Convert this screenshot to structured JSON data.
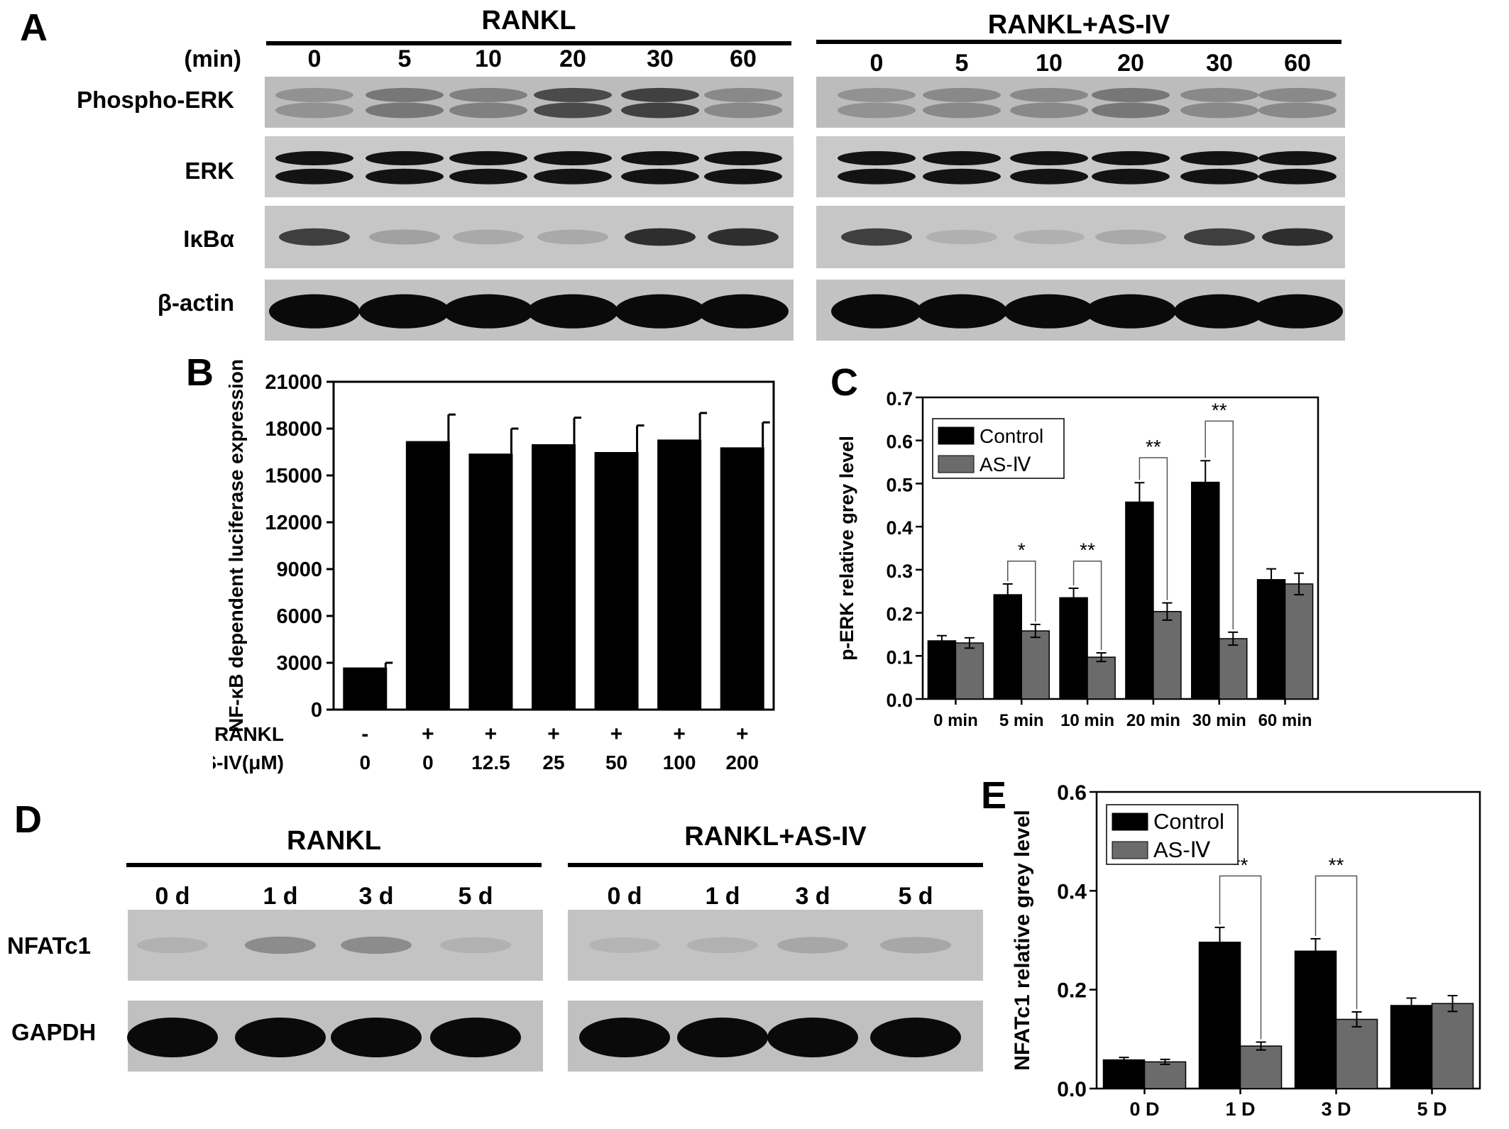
{
  "panels": {
    "A": {
      "letter": "A",
      "min_label": "(min)",
      "group_left": "RANKL",
      "group_right": "RANKL+AS-IV",
      "lanes": [
        "0",
        "5",
        "10",
        "20",
        "30",
        "60"
      ],
      "rows": [
        "Phospho-ERK",
        "ERK",
        "IκBα",
        "β-actin"
      ],
      "band_intensity": {
        "left": [
          [
            0.3,
            0.45,
            0.4,
            0.7,
            0.75,
            0.35
          ],
          [
            1,
            1,
            1,
            1,
            1,
            1
          ],
          [
            0.85,
            0.45,
            0.4,
            0.4,
            0.9,
            0.9
          ],
          [
            1,
            1,
            1,
            1,
            1,
            1
          ]
        ],
        "right": [
          [
            0.3,
            0.35,
            0.35,
            0.45,
            0.35,
            0.35
          ],
          [
            1,
            1,
            1,
            1,
            1,
            1
          ],
          [
            0.85,
            0.35,
            0.35,
            0.4,
            0.85,
            0.9
          ],
          [
            1,
            1,
            1,
            1,
            1,
            1
          ]
        ]
      }
    },
    "B": {
      "letter": "B"
    },
    "C": {
      "letter": "C"
    },
    "D": {
      "letter": "D",
      "group_left": "RANKL",
      "group_right": "RANKL+AS-IV",
      "lanes": [
        "0 d",
        "1 d",
        "3 d",
        "5 d"
      ],
      "rows": [
        "NFATc1",
        "GAPDH"
      ],
      "band_intensity": {
        "left": [
          [
            0.3,
            0.55,
            0.55,
            0.3
          ],
          [
            1,
            1,
            1,
            1
          ]
        ],
        "right": [
          [
            0.25,
            0.3,
            0.4,
            0.4
          ],
          [
            1,
            1,
            1,
            1
          ]
        ]
      }
    },
    "E": {
      "letter": "E"
    }
  },
  "chart_data": [
    {
      "id": "B",
      "type": "bar",
      "ylabel": "NF-κB dependent luciferase expression",
      "ylim": [
        0,
        21000
      ],
      "yticks": [
        "0",
        "3000",
        "6000",
        "9000",
        "12000",
        "15000",
        "18000",
        "21000"
      ],
      "row_labels": [
        "RANKL",
        "AS-IV(μM)"
      ],
      "categories_rankl": [
        "-",
        "+",
        "+",
        "+",
        "+",
        "+",
        "+"
      ],
      "categories_asiv": [
        "0",
        "0",
        "12.5",
        "25",
        "50",
        "100",
        "200"
      ],
      "values": [
        2700,
        17200,
        16400,
        17000,
        16500,
        17300,
        16800
      ],
      "errors": [
        300,
        1700,
        1600,
        1700,
        1700,
        1700,
        1600
      ],
      "color": "#000000"
    },
    {
      "id": "C",
      "type": "bar",
      "ylabel": "p-ERK relative grey level",
      "ylim": [
        0,
        0.7
      ],
      "yticks": [
        "0.0",
        "0.1",
        "0.2",
        "0.3",
        "0.4",
        "0.5",
        "0.6",
        "0.7"
      ],
      "categories": [
        "0 min",
        "5 min",
        "10 min",
        "20 min",
        "30 min",
        "60 min"
      ],
      "legend_placement": "top-left",
      "series": [
        {
          "name": "Control",
          "color": "#000000",
          "values": [
            0.135,
            0.242,
            0.235,
            0.457,
            0.503,
            0.277
          ],
          "errors": [
            0.012,
            0.025,
            0.022,
            0.045,
            0.05,
            0.025
          ]
        },
        {
          "name": "AS-Ⅳ",
          "color": "#6b6b6b",
          "values": [
            0.13,
            0.158,
            0.097,
            0.203,
            0.14,
            0.267
          ],
          "errors": [
            0.012,
            0.015,
            0.01,
            0.02,
            0.015,
            0.025
          ]
        }
      ],
      "significance": [
        {
          "index": 1,
          "label": "*",
          "level": 0.32
        },
        {
          "index": 2,
          "label": "**",
          "level": 0.32
        },
        {
          "index": 3,
          "label": "**",
          "level": 0.56
        },
        {
          "index": 4,
          "label": "**",
          "level": 0.645
        }
      ]
    },
    {
      "id": "E",
      "type": "bar",
      "ylabel": "NFATc1 relative grey level",
      "ylim": [
        0,
        0.6
      ],
      "yticks": [
        "0.0",
        "0.2",
        "0.4",
        "0.6"
      ],
      "categories": [
        "0 D",
        "1 D",
        "3 D",
        "5 D"
      ],
      "legend_placement": "top-left",
      "series": [
        {
          "name": "Control",
          "color": "#000000",
          "values": [
            0.058,
            0.296,
            0.278,
            0.168
          ],
          "errors": [
            0.005,
            0.03,
            0.025,
            0.015
          ]
        },
        {
          "name": "AS-Ⅳ",
          "color": "#6b6b6b",
          "values": [
            0.054,
            0.086,
            0.14,
            0.172
          ],
          "errors": [
            0.005,
            0.008,
            0.015,
            0.016
          ]
        }
      ],
      "significance": [
        {
          "index": 1,
          "label": "**",
          "level": 0.43
        },
        {
          "index": 2,
          "label": "**",
          "level": 0.43
        }
      ]
    }
  ]
}
